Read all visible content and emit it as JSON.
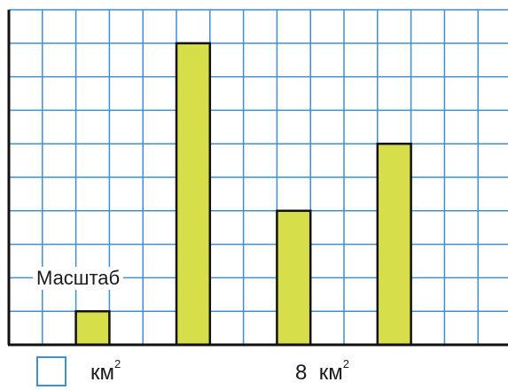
{
  "chart_data": {
    "type": "bar",
    "categories": [
      "",
      "",
      "",
      ""
    ],
    "values": [
      1,
      9,
      4,
      6
    ],
    "ylim": [
      0,
      10
    ],
    "grid": true,
    "bar_color": "#d6de49",
    "grid_color": "#3f8fd2",
    "axis_color": "#111111"
  },
  "labels": {
    "scale": "Масштаб",
    "unit": "км",
    "unit_power": "2",
    "area_value": "8",
    "area_unit": "км",
    "area_power": "2"
  }
}
